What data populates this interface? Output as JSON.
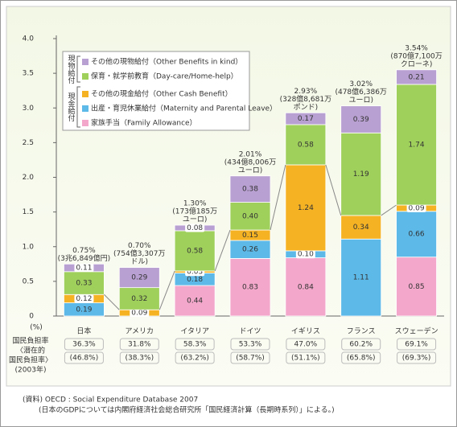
{
  "chart_data": {
    "type": "stacked_bar",
    "categories": [
      "日本",
      "アメリカ",
      "イタリア",
      "ドイツ",
      "イギリス",
      "フランス",
      "スウェーデン"
    ],
    "series": [
      {
        "name": "家族手当（Family Allowance）",
        "color": "#f3a8cb",
        "values": [
          null,
          null,
          0.44,
          0.83,
          0.84,
          null,
          0.85
        ],
        "value_labels": [
          null,
          null,
          "0.44",
          "0.83",
          "0.84",
          null,
          "0.85"
        ]
      },
      {
        "name": "出産・育児休業給付（Maternity and Parental Leave）",
        "color": "#5cb9e8",
        "values": [
          0.19,
          null,
          0.18,
          0.26,
          0.1,
          1.11,
          0.66
        ],
        "value_labels": [
          "0.19",
          null,
          "0.18",
          "0.26",
          "0.10",
          "1.11",
          "0.66"
        ]
      },
      {
        "name": "その他の現金給付（Other Cash Benefit）",
        "color": "#f5b324",
        "values": [
          0.12,
          0.09,
          0.03,
          0.15,
          1.24,
          0.34,
          0.09
        ],
        "value_labels": [
          "0.12",
          "0.09",
          "0.03",
          "0.15",
          "1.24",
          "0.34",
          "0.09"
        ]
      },
      {
        "name": "保育・就学前教育（Day-care/Home-help）",
        "color": "#a0d05c",
        "values": [
          0.33,
          0.32,
          0.58,
          0.4,
          0.58,
          1.19,
          1.74
        ],
        "value_labels": [
          "0.33",
          "0.32",
          "0.58",
          "0.40",
          "0.58",
          "1.19",
          "1.74"
        ]
      },
      {
        "name": "その他の現物給付（Other Benefits in kind）",
        "color": "#b9a0d2",
        "values": [
          0.11,
          0.29,
          0.08,
          0.38,
          0.17,
          0.39,
          0.21
        ],
        "value_labels": [
          "0.11",
          "0.29",
          "0.08",
          "0.38",
          "0.17",
          "0.39",
          "0.21"
        ]
      }
    ],
    "legend_groups": [
      "現物給付",
      "現金給付"
    ],
    "total_labels": [
      [
        "0.75%",
        "(3兆6,849億円)"
      ],
      [
        "0.70%",
        "(754億3,307万",
        "ドル)"
      ],
      [
        "1.30%",
        "(173億185万",
        "ユーロ)"
      ],
      [
        "2.01%",
        "(434億8,006万",
        "ユーロ)"
      ],
      [
        "2.93%",
        "(328億8,681万",
        "ポンド)"
      ],
      [
        "3.02%",
        "(478億6,386万",
        "ユーロ)"
      ],
      [
        "3.54%",
        "(870億7,100万",
        "クローネ)"
      ]
    ],
    "ylim": [
      0,
      4
    ],
    "yticks": [
      0,
      0.5,
      {
        "value": 1,
        "label": "1.0"
      },
      1.5,
      {
        "value": 2,
        "label": "2.0"
      },
      2.5,
      {
        "value": 3,
        "label": "3.0"
      },
      3.5,
      {
        "value": 4,
        "label": "4.0"
      }
    ],
    "unit_label": "(%)",
    "burden_label": [
      "国民負担率",
      "〈潜在的",
      "国民負担率〉",
      "(2003年)"
    ],
    "burden": [
      [
        "36.3%",
        "(46.8%)"
      ],
      [
        "31.8%",
        "(38.3%)"
      ],
      [
        "58.3%",
        "(63.2%)"
      ],
      [
        "53.3%",
        "(58.7%)"
      ],
      [
        "47.0%",
        "(51.1%)"
      ],
      [
        "60.2%",
        "(65.8%)"
      ],
      [
        "69.1%",
        "(69.3%)"
      ]
    ],
    "source": [
      "(資料) OECD : Social Expenditure Database 2007",
      "(日本のGDPについては内閣府経済社会総合研究所「国民経済計算（長期時系列）」による。)"
    ]
  }
}
